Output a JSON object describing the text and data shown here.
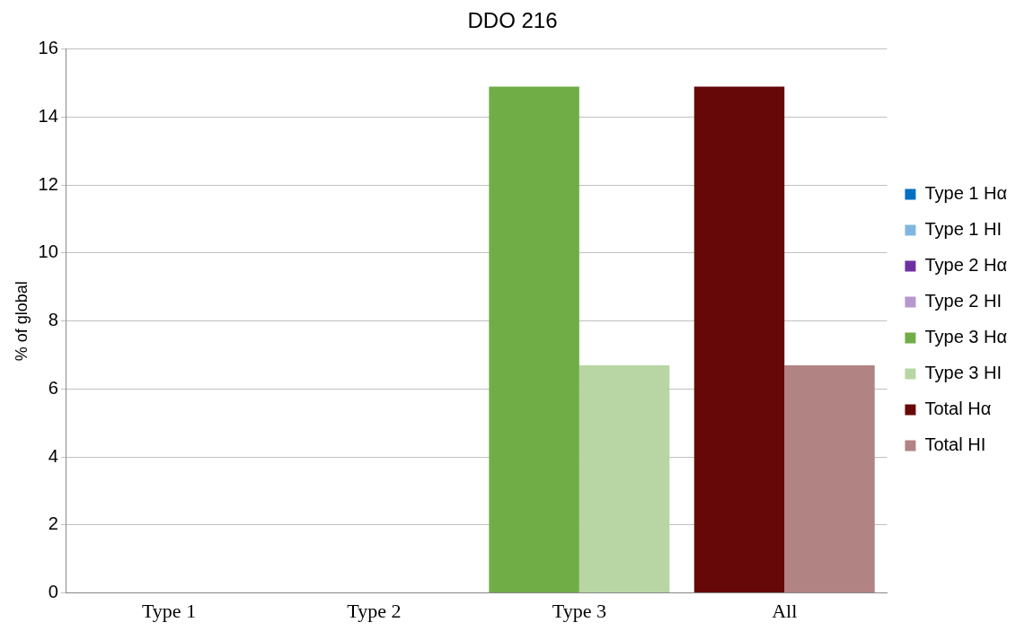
{
  "chart_data": {
    "type": "bar",
    "title": "DDO 216",
    "ylabel": "% of global",
    "categories": [
      "Type 1",
      "Type 2",
      "Type 3",
      "All"
    ],
    "series": [
      {
        "name": "Type 1 Hα",
        "color": "#0070c0",
        "values": [
          null,
          null,
          null,
          null
        ]
      },
      {
        "name": "Type 1 HI",
        "color": "#7fb7e0",
        "values": [
          null,
          null,
          null,
          null
        ]
      },
      {
        "name": "Type 2 Hα",
        "color": "#7030a0",
        "values": [
          null,
          null,
          null,
          null
        ]
      },
      {
        "name": "Type 2 HI",
        "color": "#b797cf",
        "values": [
          null,
          null,
          null,
          null
        ]
      },
      {
        "name": "Type 3 Hα",
        "color": "#70ad47",
        "values": [
          null,
          null,
          14.9,
          null
        ]
      },
      {
        "name": "Type 3 HI",
        "color": "#b7d6a3",
        "values": [
          null,
          null,
          6.7,
          null
        ]
      },
      {
        "name": "Total Hα",
        "color": "#660708",
        "values": [
          null,
          null,
          null,
          14.9
        ]
      },
      {
        "name": "Total HI",
        "color": "#b28383",
        "values": [
          null,
          null,
          null,
          6.7
        ]
      }
    ],
    "ylim": [
      0,
      16
    ],
    "yticks": [
      0,
      2,
      4,
      6,
      8,
      10,
      12,
      14,
      16
    ],
    "grid": "y",
    "legend": "right"
  }
}
